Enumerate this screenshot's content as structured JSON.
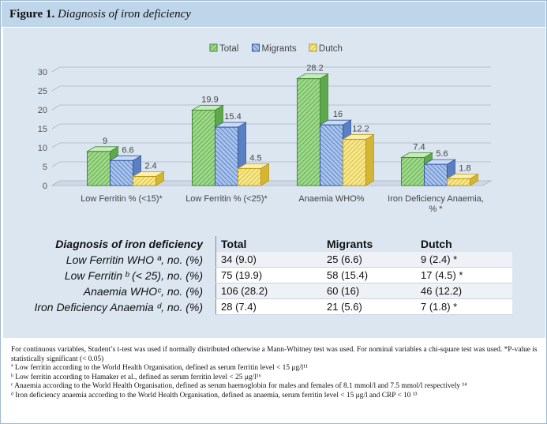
{
  "figure": {
    "number": "Figure 1.",
    "caption": "Diagnosis of iron deficiency"
  },
  "colors": {
    "total": "#8fd07a",
    "migrants": "#8eb2e6",
    "dutch": "#f5df6a",
    "title_bar": "#bed5ea",
    "panel": "#dbe6f1"
  },
  "chart_data": {
    "type": "bar",
    "categories": [
      "Low Ferritin % (<15)*",
      "Low Ferritin % (<25)*",
      "Anaemia WHO%",
      "Iron Deficiency Anaemia, % *"
    ],
    "series": [
      {
        "name": "Total",
        "values": [
          9,
          19.9,
          28.2,
          7.4
        ],
        "labels": [
          "9",
          "19.9",
          "28.2",
          "7.4"
        ]
      },
      {
        "name": "Migrants",
        "values": [
          6.6,
          15.4,
          16,
          5.6
        ],
        "labels": [
          "6.6",
          "15.4",
          "16",
          "5.6"
        ]
      },
      {
        "name": "Dutch",
        "values": [
          2.4,
          4.5,
          12.2,
          1.8
        ],
        "labels": [
          "2.4",
          "4.5",
          "12.2",
          "1.8"
        ]
      }
    ],
    "ylim": [
      0,
      30
    ],
    "yticks": [
      "0",
      "5",
      "10",
      "15",
      "20",
      "25",
      "30"
    ],
    "legend": "top-center",
    "grid": true,
    "style": "3d-hatched"
  },
  "table": {
    "header": {
      "row_label": "Diagnosis of iron deficiency",
      "cols": [
        "Total",
        "Migrants",
        "Dutch"
      ]
    },
    "rows": [
      {
        "label": "Low Ferritin WHO ª, no. (%)",
        "total": "34 (9.0)",
        "migrants": "25 (6.6)",
        "dutch": "9 (2.4) *"
      },
      {
        "label": "Low Ferritin ᵇ (< 25), no. (%)",
        "total": "75 (19.9)",
        "migrants": "58 (15.4)",
        "dutch": "17 (4.5) *"
      },
      {
        "label": "Anaemia WHOᶜ, no. (%)",
        "total": "106 (28.2)",
        "migrants": "60 (16)",
        "dutch": "46 (12.2)"
      },
      {
        "label": "Iron Deficiency Anaemia ᵈ, no. (%)",
        "total": "28 (7.4)",
        "migrants": "21 (5.6)",
        "dutch": "7 (1.8) *"
      }
    ]
  },
  "notes": [
    "For continuous variables, Student’s t-test was used if normally distributed otherwise a Mann-Whitney test was used. For nominal variables a chi-square test was used. *P-value is statistically significant (< 0.05)",
    "ª Low ferritin according to the World Health Organisation, defined as serum ferritin level < 15 μg/l¹¹",
    "ᵇ Low ferritin according to Hamaker et al., defined as serum ferritin level < 25 μg/l¹⁶",
    "ᶜ Anaemia according to the World Health Organisation, defined as serum haemoglobin for males and females of 8.1 mmol/l and 7.5 mmol/l respectively ¹⁴",
    "ᵈ Iron deficiency anaemia according to the World Health Organisation, defined as anaemia, serum ferritin level < 15 μg/l and CRP < 10 ¹³"
  ]
}
